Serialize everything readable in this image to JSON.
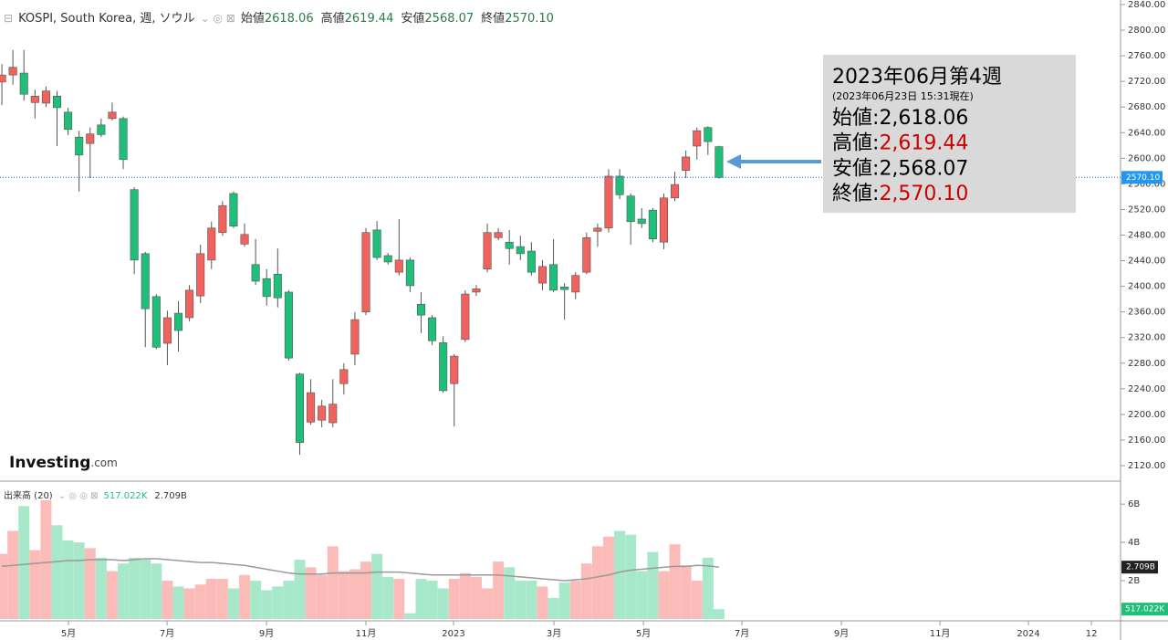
{
  "chart_data": [
    {
      "type": "candlestick",
      "title": "KOSPI, South Korea, 週, ソウル",
      "ohlc": {
        "names": [
          "始値",
          "高値",
          "安値",
          "終値"
        ],
        "values": [
          2618.06,
          2619.44,
          2568.07,
          2570.1
        ],
        "value_labels": [
          "2618.06",
          "2619.44",
          "2568.07",
          "2570.10"
        ]
      },
      "tooltip": {
        "title": "2023年06月第4週",
        "subtitle": "(2023年06月23日 15:31現在)",
        "separator": ":",
        "value_labels": [
          "2,618.06",
          "2,619.44",
          "2,568.07",
          "2,570.10"
        ],
        "value_colors": [
          "#000000",
          "#cc0000",
          "#000000",
          "#cc0000"
        ]
      },
      "logo": [
        "Investing",
        ".com"
      ],
      "up_color": "#f0625d",
      "down_color": "#1fbf7a",
      "x": [
        0,
        1,
        2,
        3,
        4,
        5,
        6,
        7,
        8,
        9,
        10,
        11,
        12,
        13,
        14,
        15,
        16,
        17,
        18,
        19,
        20,
        21,
        22,
        23,
        24,
        25,
        26,
        27,
        28,
        29,
        30,
        31,
        32,
        33,
        34,
        35,
        36,
        37,
        38,
        39,
        40,
        41,
        42,
        43,
        44,
        45,
        46,
        47,
        48,
        49,
        50,
        51,
        52,
        53,
        54,
        55,
        56,
        57,
        58,
        59,
        60,
        61,
        62,
        63,
        64,
        65
      ],
      "open": [
        2719,
        2730,
        2733,
        2687,
        2686,
        2697,
        2672,
        2633,
        2623,
        2652,
        2662,
        2662,
        2551,
        2451,
        2384,
        2311,
        2358,
        2351,
        2385,
        2441,
        2484,
        2545,
        2466,
        2434,
        2412,
        2419,
        2391,
        2263,
        2188,
        2191,
        2187,
        2248,
        2294,
        2360,
        2488,
        2448,
        2422,
        2441,
        2372,
        2351,
        2312,
        2248,
        2317,
        2391,
        2427,
        2476,
        2469,
        2462,
        2455,
        2405,
        2434,
        2399,
        2391,
        2422,
        2486,
        2491,
        2572,
        2541,
        2505,
        2519,
        2469,
        2538,
        2581,
        2619,
        2648,
        2618.06
      ],
      "high": [
        2747,
        2769,
        2769,
        2707,
        2712,
        2705,
        2679,
        2643,
        2648,
        2662,
        2687,
        2665,
        2555,
        2454,
        2388,
        2362,
        2377,
        2402,
        2465,
        2501,
        2533,
        2548,
        2498,
        2474,
        2427,
        2459,
        2394,
        2265,
        2255,
        2223,
        2255,
        2280,
        2360,
        2491,
        2502,
        2452,
        2505,
        2445,
        2391,
        2355,
        2322,
        2294,
        2394,
        2402,
        2498,
        2491,
        2488,
        2479,
        2469,
        2441,
        2474,
        2405,
        2422,
        2484,
        2498,
        2583,
        2583,
        2545,
        2522,
        2522,
        2545,
        2579,
        2612,
        2648,
        2650,
        2619.44
      ],
      "low": [
        2683,
        2715,
        2690,
        2662,
        2680,
        2619,
        2636,
        2548,
        2569,
        2633,
        2659,
        2583,
        2419,
        2305,
        2302,
        2277,
        2298,
        2345,
        2374,
        2427,
        2479,
        2491,
        2462,
        2402,
        2370,
        2367,
        2284,
        2137,
        2184,
        2180,
        2180,
        2231,
        2277,
        2355,
        2441,
        2434,
        2417,
        2391,
        2327,
        2308,
        2234,
        2181,
        2313,
        2385,
        2422,
        2472,
        2434,
        2441,
        2417,
        2394,
        2391,
        2348,
        2380,
        2419,
        2462,
        2484,
        2536,
        2465,
        2491,
        2469,
        2458,
        2533,
        2569,
        2598,
        2605,
        2568.07
      ],
      "close": [
        2730,
        2742,
        2700,
        2697,
        2705,
        2679,
        2645,
        2605,
        2638,
        2637,
        2672,
        2598,
        2441,
        2365,
        2305,
        2351,
        2331,
        2394,
        2451,
        2491,
        2526,
        2494,
        2481,
        2408,
        2384,
        2382,
        2288,
        2156,
        2234,
        2213,
        2216,
        2270,
        2348,
        2484,
        2445,
        2438,
        2441,
        2401,
        2355,
        2315,
        2237,
        2291,
        2388,
        2396,
        2484,
        2484,
        2459,
        2451,
        2422,
        2431,
        2394,
        2395,
        2417,
        2476,
        2491,
        2572,
        2543,
        2501,
        2498,
        2474,
        2538,
        2559,
        2602,
        2643,
        2626,
        2570.1
      ],
      "xlim": [
        -0.17,
        101.4
      ],
      "xticks": [
        {
          "value": 6.04,
          "label": "5月"
        },
        {
          "value": 14.97,
          "label": "7月"
        },
        {
          "value": 23.99,
          "label": "9月"
        },
        {
          "value": 33.0,
          "label": "11月"
        },
        {
          "value": 40.94,
          "label": "2023"
        },
        {
          "value": 50.04,
          "label": "3月"
        },
        {
          "value": 58.15,
          "label": "5月"
        },
        {
          "value": 67.08,
          "label": "7月"
        },
        {
          "value": 76.1,
          "label": "9月"
        },
        {
          "value": 85.03,
          "label": "11月"
        },
        {
          "value": 93.05,
          "label": "2024"
        },
        {
          "value": 98.76,
          "label": "12"
        }
      ],
      "ylim": [
        2095.8,
        2847.1
      ],
      "yticks": [
        {
          "value": 2840,
          "label": "2840.00"
        },
        {
          "value": 2800,
          "label": "2800.00"
        },
        {
          "value": 2760,
          "label": "2760.00"
        },
        {
          "value": 2720,
          "label": "2720.00"
        },
        {
          "value": 2680,
          "label": "2680.00"
        },
        {
          "value": 2640,
          "label": "2640.00"
        },
        {
          "value": 2600,
          "label": "2600.00"
        },
        {
          "value": 2560,
          "label": "2560.00"
        },
        {
          "value": 2520,
          "label": "2520.00"
        },
        {
          "value": 2480,
          "label": "2480.00"
        },
        {
          "value": 2440,
          "label": "2440.00"
        },
        {
          "value": 2400,
          "label": "2400.00"
        },
        {
          "value": 2360,
          "label": "2360.00"
        },
        {
          "value": 2320,
          "label": "2320.00"
        },
        {
          "value": 2280,
          "label": "2280.00"
        },
        {
          "value": 2240,
          "label": "2240.00"
        },
        {
          "value": 2200,
          "label": "2200.00"
        },
        {
          "value": 2160,
          "label": "2160.00"
        },
        {
          "value": 2120,
          "label": "2120.00"
        }
      ]
    },
    {
      "type": "volume",
      "legend_label": "出来高 (20)",
      "last_labels": [
        "517.022K",
        "2.709B"
      ],
      "up_color": "#fbbcb9",
      "down_color": "#a6e8c9",
      "ma_color": "#999999",
      "values": [
        3.4,
        4.6,
        5.9,
        3.6,
        6.2,
        4.9,
        4.1,
        4.0,
        3.7,
        3.2,
        2.5,
        2.9,
        3.2,
        3.1,
        2.9,
        2.0,
        1.7,
        1.6,
        1.8,
        2.1,
        2.1,
        1.6,
        2.3,
        2.0,
        1.5,
        1.7,
        2.0,
        3.1,
        2.7,
        2.3,
        3.8,
        2.5,
        2.6,
        3.0,
        3.4,
        2.2,
        2.1,
        0.3,
        2.1,
        2.0,
        1.6,
        2.1,
        2.4,
        2.2,
        1.6,
        3.0,
        2.7,
        2.0,
        2.0,
        1.7,
        1.1,
        1.9,
        2.0,
        2.9,
        3.8,
        4.3,
        4.6,
        4.4,
        2.5,
        3.5,
        2.5,
        3.9,
        2.8,
        2.0,
        3.2,
        0.517022
      ],
      "ma": [
        2.75,
        2.8,
        2.85,
        2.9,
        2.95,
        3.0,
        3.05,
        3.05,
        3.1,
        3.1,
        3.1,
        3.05,
        3.1,
        3.15,
        3.15,
        3.1,
        3.05,
        3.0,
        2.95,
        2.95,
        2.9,
        2.85,
        2.8,
        2.7,
        2.6,
        2.5,
        2.4,
        2.35,
        2.35,
        2.35,
        2.4,
        2.4,
        2.4,
        2.4,
        2.45,
        2.45,
        2.45,
        2.4,
        2.35,
        2.3,
        2.3,
        2.3,
        2.3,
        2.3,
        2.3,
        2.3,
        2.25,
        2.2,
        2.15,
        2.1,
        2.05,
        2.0,
        2.05,
        2.1,
        2.2,
        2.3,
        2.45,
        2.55,
        2.6,
        2.65,
        2.7,
        2.75,
        2.75,
        2.8,
        2.78,
        2.709
      ],
      "ylim": [
        0,
        7.2
      ],
      "yticks": [
        {
          "value": 2,
          "label": "2B"
        },
        {
          "value": 4,
          "label": "4B"
        },
        {
          "value": 6,
          "label": "6B"
        }
      ]
    }
  ]
}
